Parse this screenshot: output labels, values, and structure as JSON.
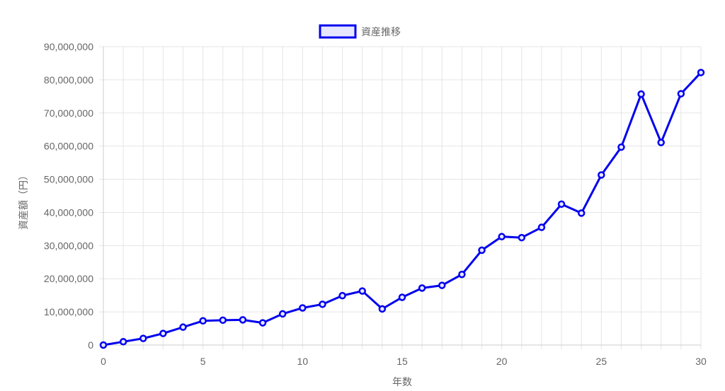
{
  "chart_data": {
    "type": "line",
    "legend": {
      "position": "top",
      "entries": [
        {
          "name": "資産推移",
          "color": "#0000ee",
          "fill": "#e6e6ff"
        }
      ]
    },
    "xlabel": "年数",
    "ylabel": "資産額（円）",
    "xlim": [
      0,
      30
    ],
    "ylim": [
      0,
      90000000
    ],
    "x_ticks": [
      0,
      5,
      10,
      15,
      20,
      25,
      30
    ],
    "y_ticks": [
      0,
      10000000,
      20000000,
      30000000,
      40000000,
      50000000,
      60000000,
      70000000,
      80000000,
      90000000
    ],
    "y_tick_labels": [
      "0",
      "10,000,000",
      "20,000,000",
      "30,000,000",
      "40,000,000",
      "50,000,000",
      "60,000,000",
      "70,000,000",
      "80,000,000",
      "90,000,000"
    ],
    "grid": true,
    "x": [
      0,
      1,
      2,
      3,
      4,
      5,
      6,
      7,
      8,
      9,
      10,
      11,
      12,
      13,
      14,
      15,
      16,
      17,
      18,
      19,
      20,
      21,
      22,
      23,
      24,
      25,
      26,
      27,
      28,
      29,
      30
    ],
    "series": [
      {
        "name": "資産推移",
        "color": "#0000ee",
        "values": [
          0,
          1000000,
          2000000,
          3500000,
          5400000,
          7300000,
          7500000,
          7600000,
          6700000,
          9400000,
          11200000,
          12300000,
          14900000,
          16300000,
          10900000,
          14400000,
          17200000,
          18000000,
          21300000,
          28600000,
          32700000,
          32400000,
          35500000,
          42500000,
          39800000,
          51300000,
          59700000,
          75700000,
          61100000,
          75800000,
          82200000
        ]
      }
    ]
  }
}
